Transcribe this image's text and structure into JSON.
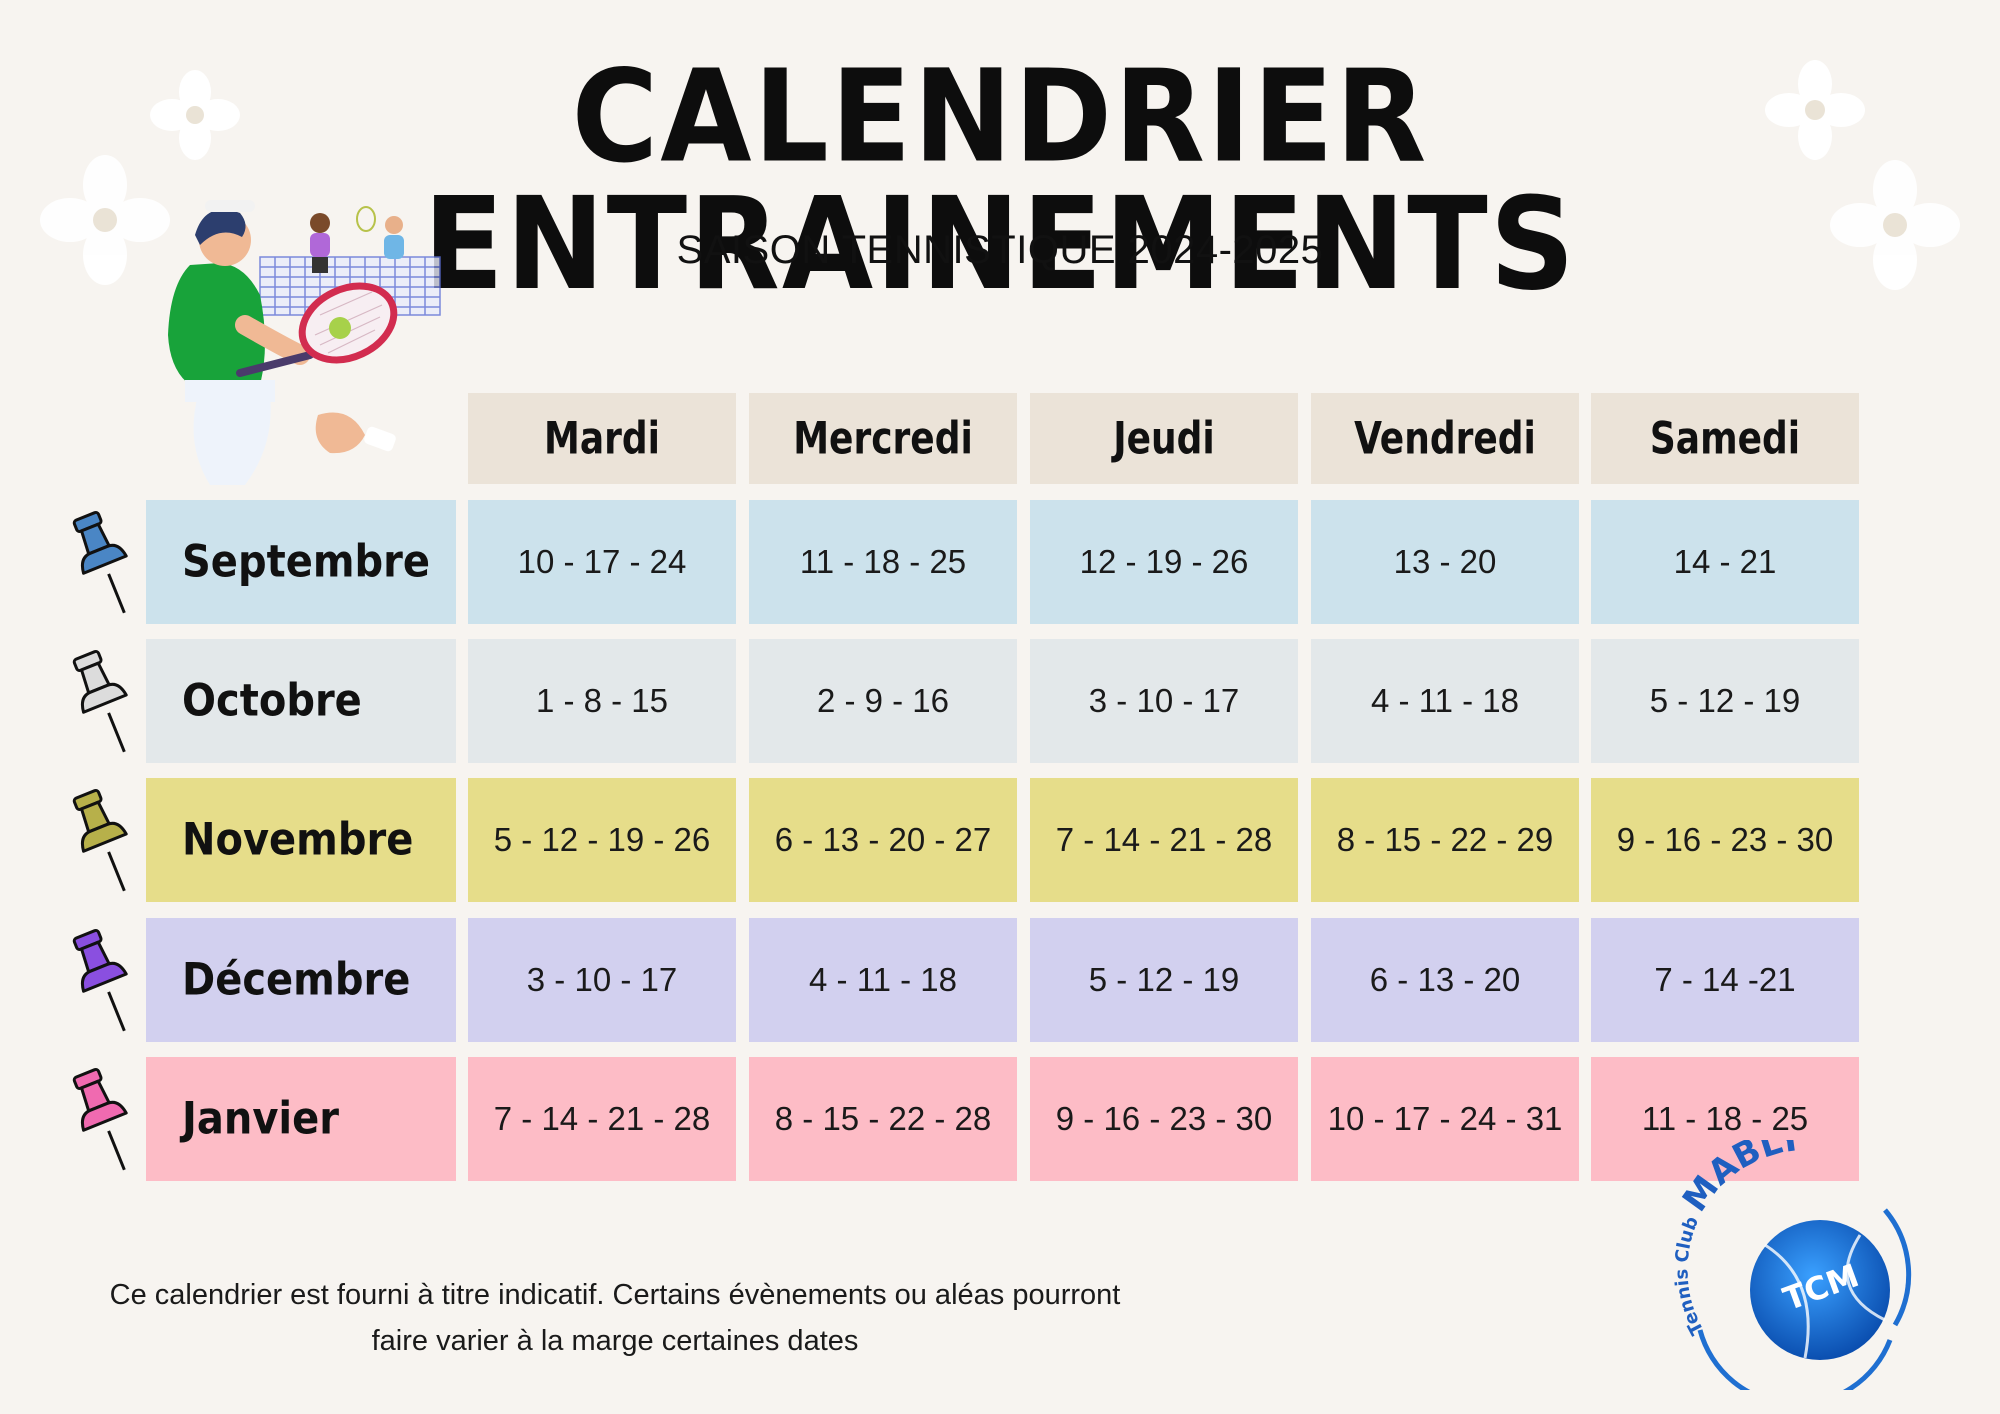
{
  "title": "CALENDRIER ENTRAINEMENTS",
  "subtitle": "SAISON TENNISTIQUE 2024-2025",
  "days": [
    "Mardi",
    "Mercredi",
    "Jeudi",
    "Vendredi",
    "Samedi"
  ],
  "rows": [
    {
      "month": "Septembre",
      "color": "#cce2ec",
      "pin_color": "#4a86c5",
      "dates": [
        "10 - 17 - 24",
        "11 - 18 - 25",
        "12 - 19 - 26",
        "13 - 20",
        "14 - 21"
      ]
    },
    {
      "month": "Octobre",
      "color": "#e3e8ea",
      "pin_color": "#dcdcdc",
      "dates": [
        "1 - 8 - 15",
        "2 - 9 - 16",
        "3 - 10 - 17",
        "4 - 11 - 18",
        "5 - 12 - 19"
      ]
    },
    {
      "month": "Novembre",
      "color": "#e6dd8a",
      "pin_color": "#b7b04a",
      "dates": [
        "5 - 12 - 19 - 26",
        "6 - 13 - 20 - 27",
        "7 - 14 - 21 - 28",
        "8 - 15 - 22 - 29",
        "9 - 16 - 23 - 30"
      ]
    },
    {
      "month": "Décembre",
      "color": "#d2d0ef",
      "pin_color": "#8a4fe0",
      "dates": [
        "3 - 10 - 17",
        "4 - 11 - 18",
        "5 - 12 - 19",
        "6 - 13 - 20",
        "7 - 14 -21"
      ]
    },
    {
      "month": "Janvier",
      "color": "#fdbcc6",
      "pin_color": "#f06ab0",
      "dates": [
        "7 - 14 - 21 - 28",
        "8 - 15 - 22 - 28",
        "9 - 16 - 23 - 30",
        "10 - 17 - 24 - 31",
        "11 - 18 - 25"
      ]
    }
  ],
  "footnote": {
    "line1": "Ce calendrier est fourni à titre indicatif. Certains évènements ou aléas pourront",
    "line2": "faire varier à la marge certaines dates"
  },
  "logo": {
    "arc_text_1": "Tennis",
    "arc_text_2": "Club",
    "arc_text_3": "MABLY",
    "ball_text": "TCM"
  },
  "colors": {
    "header_bg": "#ebe3d8",
    "logo_blue": "#1f6fd1",
    "page_bg": "#f7f4f0"
  }
}
